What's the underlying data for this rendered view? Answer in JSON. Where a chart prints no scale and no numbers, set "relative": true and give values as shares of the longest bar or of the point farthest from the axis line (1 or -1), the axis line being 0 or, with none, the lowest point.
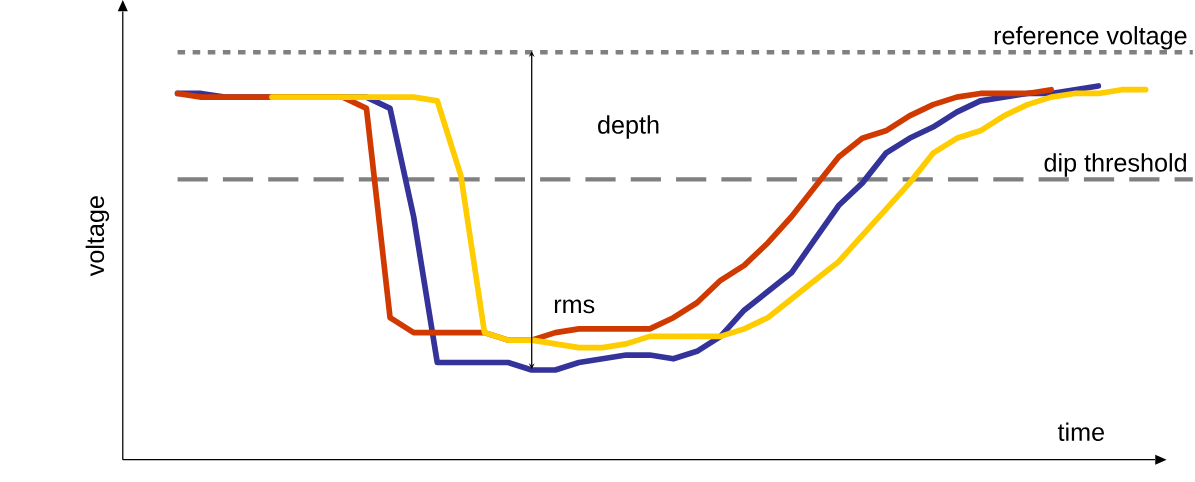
{
  "chart_data": {
    "type": "line",
    "relative": true,
    "xlabel": "time",
    "ylabel": "voltage",
    "categories": [
      null,
      null,
      null,
      null,
      null,
      null,
      null,
      null,
      null,
      null,
      null,
      null,
      null,
      null,
      null,
      null,
      null,
      null,
      null,
      null,
      null,
      null,
      null,
      null,
      null,
      null,
      null,
      null,
      null,
      null,
      null,
      null,
      null,
      null,
      null,
      null,
      null,
      null,
      null,
      null,
      null,
      null
    ],
    "series": [
      {
        "color": "#333399",
        "values": [
          0.98,
          0.98,
          0.97,
          null,
          null,
          null,
          null,
          null,
          0.97,
          0.94,
          0.65,
          0.26,
          0.26,
          0.26,
          0.26,
          0.24,
          0.24,
          0.26,
          0.27,
          0.28,
          0.28,
          0.27,
          0.29,
          0.33,
          0.4,
          0.45,
          0.5,
          0.59,
          0.68,
          0.74,
          0.82,
          0.86,
          0.89,
          0.93,
          0.96,
          0.97,
          0.98,
          0.98,
          0.99,
          1.0,
          null,
          null
        ]
      },
      {
        "color": "#d03a00",
        "values": [
          0.98,
          0.97,
          0.97,
          0.97,
          0.97,
          0.97,
          0.97,
          0.97,
          0.94,
          0.38,
          0.34,
          0.34,
          0.34,
          0.34,
          0.32,
          0.32,
          0.34,
          0.35,
          0.35,
          0.35,
          0.35,
          0.38,
          0.42,
          0.48,
          0.52,
          0.58,
          0.65,
          0.73,
          0.81,
          0.86,
          0.88,
          0.92,
          0.95,
          0.97,
          0.98,
          0.98,
          0.98,
          0.99,
          null,
          null,
          null,
          null
        ]
      },
      {
        "color": "#ffcc00",
        "values": [
          null,
          null,
          null,
          null,
          0.97,
          0.97,
          0.97,
          0.97,
          0.97,
          0.97,
          0.97,
          0.96,
          0.76,
          0.34,
          0.32,
          0.32,
          0.31,
          0.3,
          0.3,
          0.31,
          0.33,
          0.33,
          0.33,
          0.33,
          0.35,
          0.38,
          0.43,
          0.48,
          0.53,
          0.6,
          0.67,
          0.74,
          0.82,
          0.86,
          0.88,
          0.92,
          0.95,
          0.97,
          0.98,
          0.98,
          0.99,
          0.99
        ]
      }
    ],
    "ref_lines": [
      {
        "axis": "y",
        "value": 1.09,
        "label": "reference voltage",
        "line_style": "dotted",
        "color": "#808080"
      },
      {
        "axis": "y",
        "value": 0.75,
        "label": "dip threshold",
        "line_style": "dashed",
        "color": "#808080"
      }
    ],
    "annotations": [
      "depth",
      "rms"
    ]
  }
}
